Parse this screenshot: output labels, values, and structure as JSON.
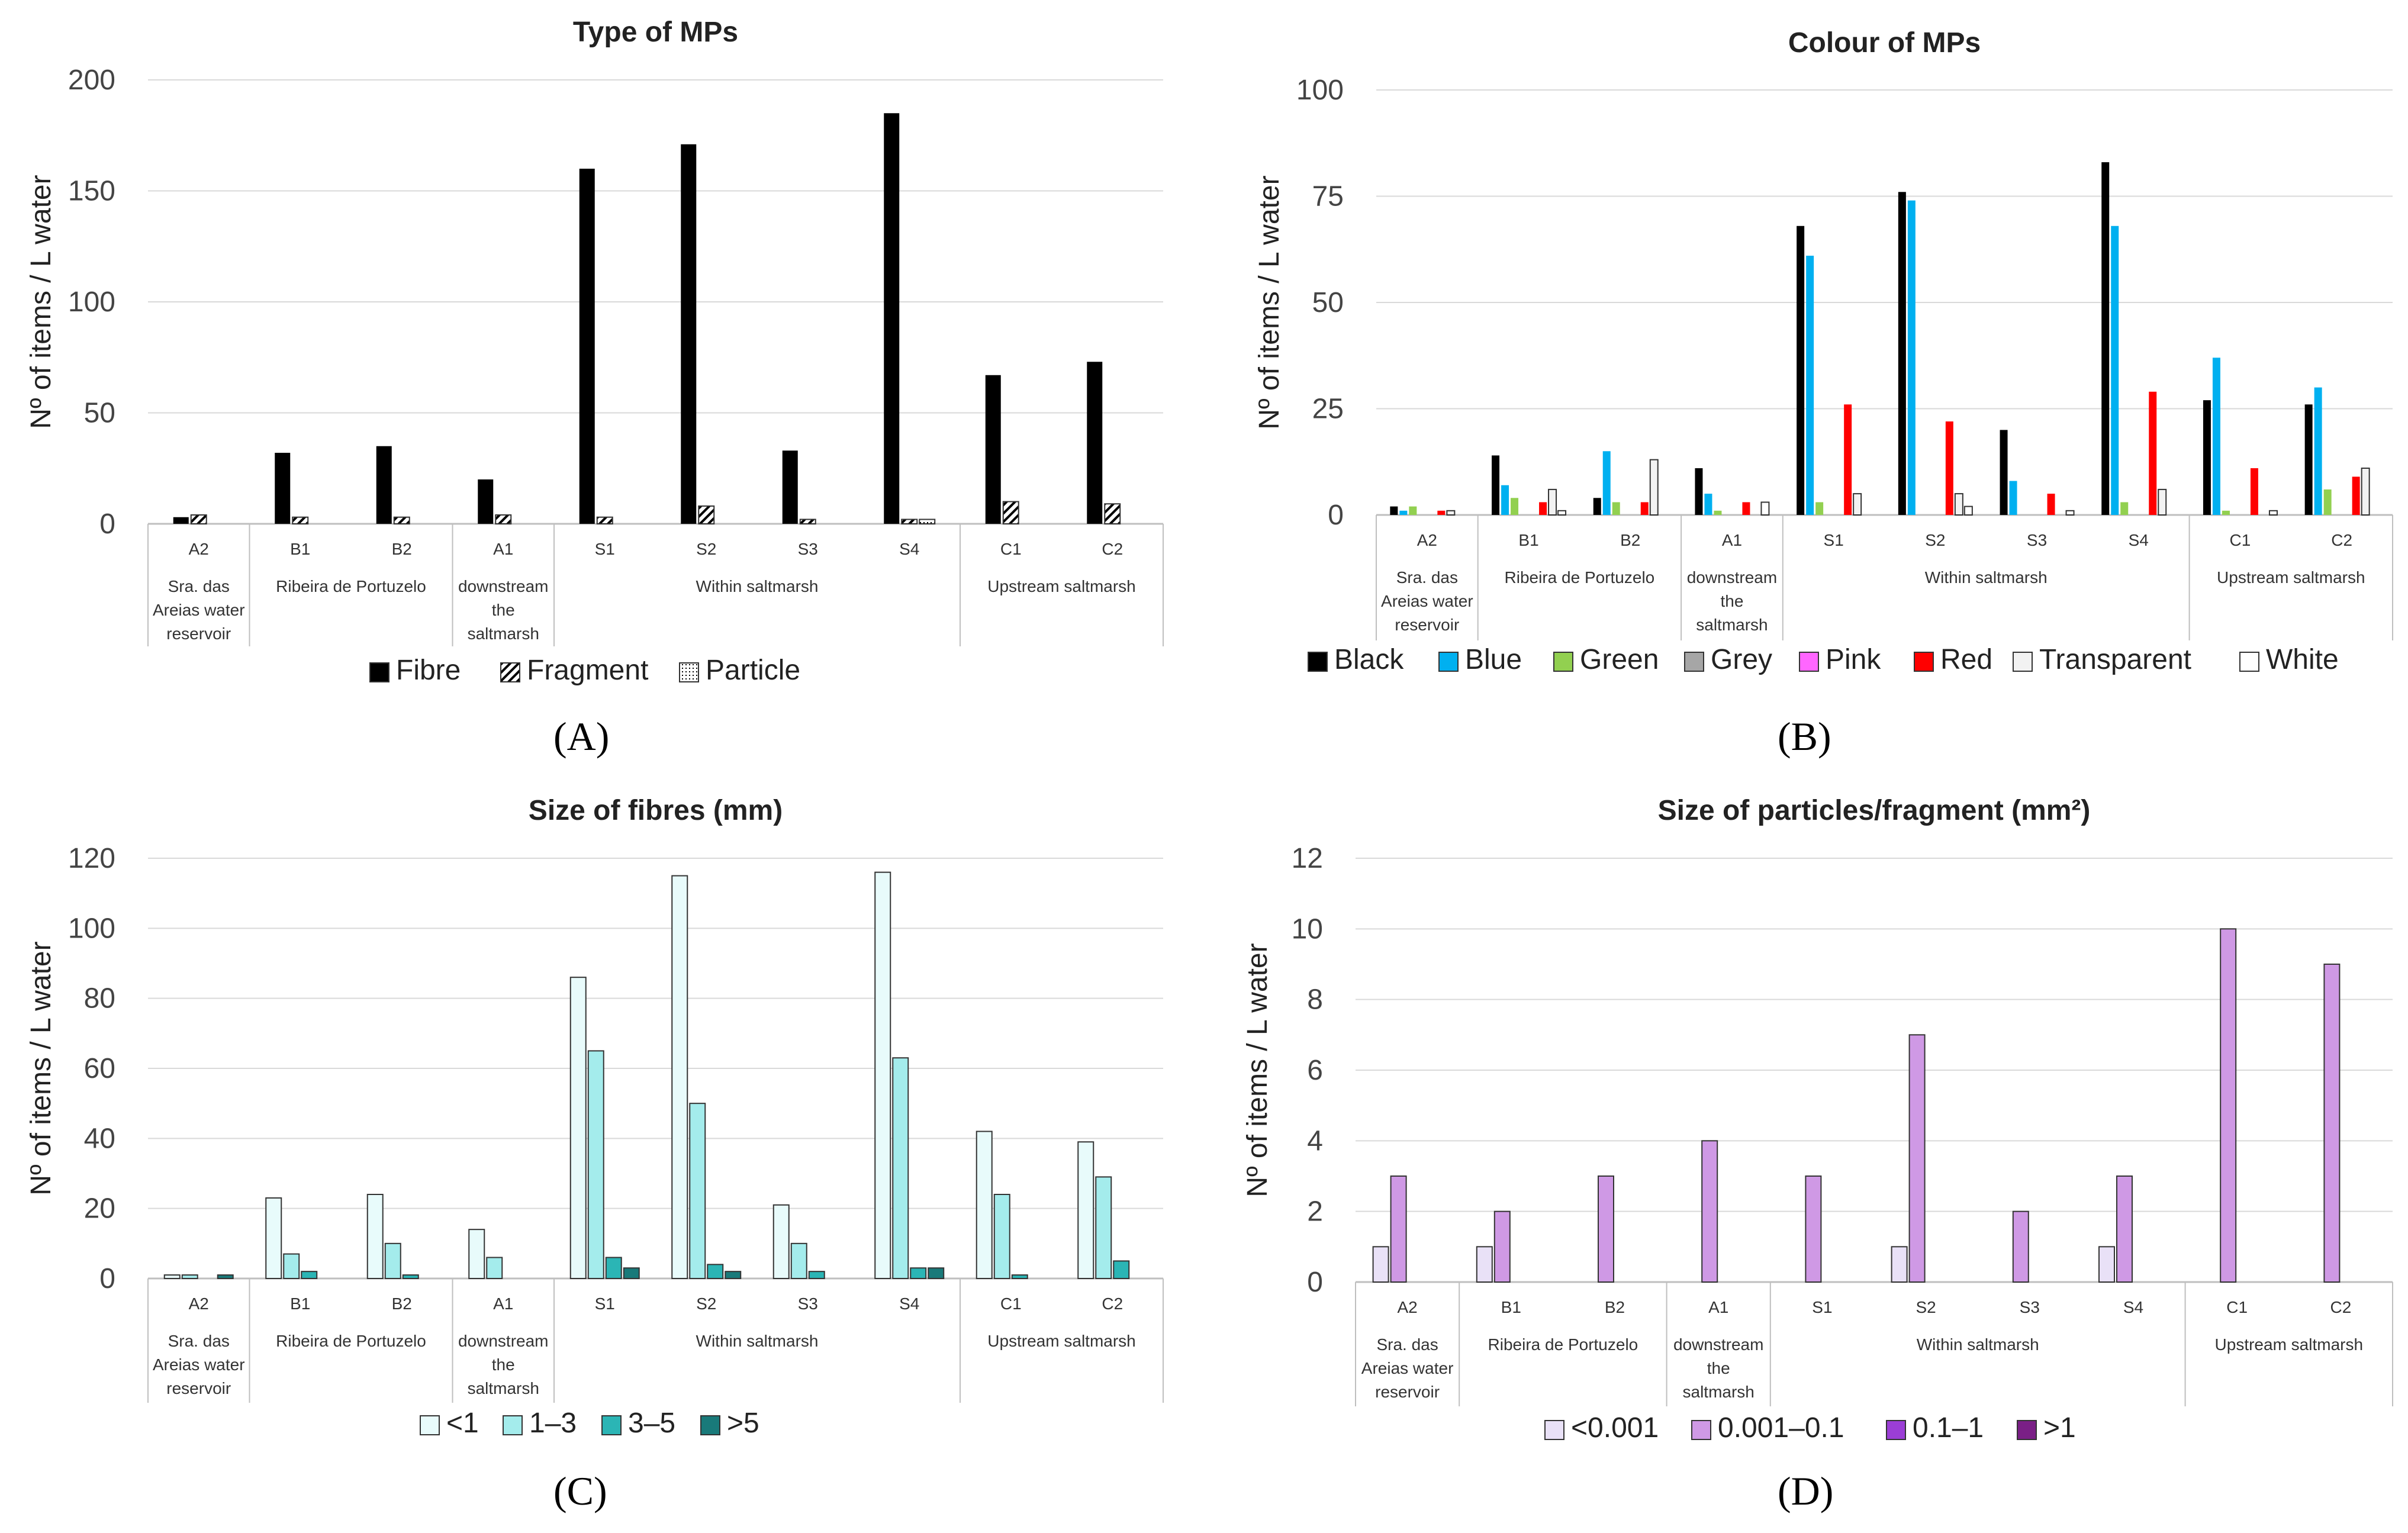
{
  "colors": {
    "fibre": "#000000",
    "fragment_hatch": "#000000",
    "particle_dot": "#000000",
    "black": "#000000",
    "blue": "#00b0f0",
    "green": "#92d050",
    "grey": "#a6a6a6",
    "pink": "#ff66ff",
    "red": "#ff0000",
    "transparent": "#f2f2f2",
    "white": "#ffffff",
    "lt1": "#e8fbfb",
    "s13": "#a4ecec",
    "s35": "#2bb5b5",
    "gt5": "#197a7a",
    "p_lt0001": "#e9e1f7",
    "p_0001_01": "#cf99e5",
    "p_01_1": "#9b3ed6",
    "p_gt1": "#7a1f86",
    "grid": "#d9d9d9",
    "axis": "#bfbfbf"
  },
  "chart_data": [
    {
      "id": "A",
      "type": "bar",
      "panel_label": "(A)",
      "title": "Type of MPs",
      "ylabel": "Nº of items / L water",
      "ylim": [
        0,
        200
      ],
      "yticks": [
        "0",
        "50",
        "100",
        "150",
        "200"
      ],
      "categories": [
        "A2",
        "B1",
        "B2",
        "A1",
        "S1",
        "S2",
        "S3",
        "S4",
        "C1",
        "C2"
      ],
      "groups": [
        {
          "label": "Sra. das Areias water reservoir",
          "lines": [
            "Sra. das",
            "Areias water",
            "reservoir"
          ],
          "span": 1
        },
        {
          "label": "Ribeira de Portuzelo",
          "lines": [
            "Ribeira de Portuzelo"
          ],
          "span": 2
        },
        {
          "label": "downstream the saltmarsh",
          "lines": [
            "downstream",
            "the",
            "saltmarsh"
          ],
          "span": 1
        },
        {
          "label": "Within saltmarsh",
          "lines": [
            "Within saltmarsh"
          ],
          "span": 4
        },
        {
          "label": "Upstream saltmarsh",
          "lines": [
            "Upstream saltmarsh"
          ],
          "span": 2
        }
      ],
      "series": [
        {
          "name": "Fibre",
          "key": "fibre",
          "values": [
            3,
            32,
            35,
            20,
            160,
            171,
            33,
            185,
            67,
            73
          ]
        },
        {
          "name": "Fragment",
          "key": "fragment",
          "values": [
            4,
            3,
            3,
            4,
            3,
            8,
            2,
            2,
            10,
            9
          ]
        },
        {
          "name": "Particle",
          "key": "particle",
          "values": [
            0,
            0,
            0,
            0,
            0,
            0,
            0,
            2,
            0,
            0
          ]
        }
      ]
    },
    {
      "id": "B",
      "type": "bar",
      "panel_label": "(B)",
      "title": "Colour of MPs",
      "ylabel": "Nº of items  / L water",
      "ylim": [
        0,
        100
      ],
      "yticks": [
        "0",
        "25",
        "50",
        "75",
        "100"
      ],
      "categories": [
        "A2",
        "B1",
        "B2",
        "A1",
        "S1",
        "S2",
        "S3",
        "S4",
        "C1",
        "C2"
      ],
      "groups": [
        {
          "label": "Sra. das Areias water reservoir",
          "lines": [
            "Sra. das",
            "Areias water",
            "reservoir"
          ],
          "span": 1
        },
        {
          "label": "Ribeira de Portuzelo",
          "lines": [
            "Ribeira de Portuzelo"
          ],
          "span": 2
        },
        {
          "label": "downstream the saltmarsh",
          "lines": [
            "downstream",
            "the",
            "saltmarsh"
          ],
          "span": 1
        },
        {
          "label": "Within saltmarsh",
          "lines": [
            "Within saltmarsh"
          ],
          "span": 4
        },
        {
          "label": "Upstream saltmarsh",
          "lines": [
            "Upstream saltmarsh"
          ],
          "span": 2
        }
      ],
      "series": [
        {
          "name": "Black",
          "key": "black",
          "values": [
            2,
            14,
            4,
            11,
            68,
            76,
            20,
            83,
            27,
            26
          ]
        },
        {
          "name": "Blue",
          "key": "blue",
          "values": [
            1,
            7,
            15,
            5,
            61,
            74,
            8,
            68,
            37,
            30
          ]
        },
        {
          "name": "Green",
          "key": "green",
          "values": [
            2,
            4,
            3,
            1,
            3,
            0,
            0,
            3,
            1,
            6
          ]
        },
        {
          "name": "Grey",
          "key": "grey",
          "values": [
            0,
            0,
            0,
            0,
            0,
            0,
            0,
            0,
            0,
            0
          ]
        },
        {
          "name": "Pink",
          "key": "pink",
          "values": [
            0,
            0,
            0,
            0,
            0,
            0,
            0,
            0,
            0,
            0
          ]
        },
        {
          "name": "Red",
          "key": "red",
          "values": [
            1,
            3,
            3,
            3,
            26,
            22,
            5,
            29,
            11,
            9
          ]
        },
        {
          "name": "Transparent",
          "key": "transparent",
          "values": [
            1,
            6,
            13,
            0,
            5,
            5,
            0,
            6,
            0,
            11
          ]
        },
        {
          "name": "White",
          "key": "white",
          "values": [
            0,
            1,
            0,
            3,
            0,
            2,
            1,
            0,
            1,
            0
          ]
        }
      ]
    },
    {
      "id": "C",
      "type": "bar",
      "panel_label": "(C)",
      "title": "Size of fibres (mm)",
      "ylabel": "Nº of items  / L water",
      "ylim": [
        0,
        120
      ],
      "yticks": [
        "0",
        "20",
        "40",
        "60",
        "80",
        "100",
        "120"
      ],
      "categories": [
        "A2",
        "B1",
        "B2",
        "A1",
        "S1",
        "S2",
        "S3",
        "S4",
        "C1",
        "C2"
      ],
      "groups": [
        {
          "label": "Sra. das Areias water reservoir",
          "lines": [
            "Sra. das",
            "Areias water",
            "reservoir"
          ],
          "span": 1
        },
        {
          "label": "Ribeira de Portuzelo",
          "lines": [
            "Ribeira de Portuzelo"
          ],
          "span": 2
        },
        {
          "label": "downstream the saltmarsh",
          "lines": [
            "downstream",
            "the",
            "saltmarsh"
          ],
          "span": 1
        },
        {
          "label": "Within saltmarsh",
          "lines": [
            "Within saltmarsh"
          ],
          "span": 4
        },
        {
          "label": "Upstream saltmarsh",
          "lines": [
            "Upstream saltmarsh"
          ],
          "span": 2
        }
      ],
      "series": [
        {
          "name": "<1",
          "key": "lt1",
          "values": [
            1,
            23,
            24,
            14,
            86,
            115,
            21,
            116,
            42,
            39
          ]
        },
        {
          "name": "1–3",
          "key": "s13",
          "values": [
            1,
            7,
            10,
            6,
            65,
            50,
            10,
            63,
            24,
            29
          ]
        },
        {
          "name": "3–5",
          "key": "s35",
          "values": [
            0,
            2,
            1,
            0,
            6,
            4,
            2,
            3,
            1,
            5
          ]
        },
        {
          "name": ">5",
          "key": "gt5",
          "values": [
            1,
            0,
            0,
            0,
            3,
            2,
            0,
            3,
            0,
            0
          ]
        }
      ]
    },
    {
      "id": "D",
      "type": "bar",
      "panel_label": "(D)",
      "title": "Size of particles/fragment (mm²)",
      "ylabel": "Nº of items  / L water",
      "ylim": [
        0,
        12
      ],
      "yticks": [
        "0",
        "2",
        "4",
        "6",
        "8",
        "10",
        "12"
      ],
      "categories": [
        "A2",
        "B1",
        "B2",
        "A1",
        "S1",
        "S2",
        "S3",
        "S4",
        "C1",
        "C2"
      ],
      "groups": [
        {
          "label": "Sra. das Areias water reservoir",
          "lines": [
            "Sra. das",
            "Areias water",
            "reservoir"
          ],
          "span": 1
        },
        {
          "label": "Ribeira de Portuzelo",
          "lines": [
            "Ribeira de Portuzelo"
          ],
          "span": 2
        },
        {
          "label": "downstream the saltmarsh",
          "lines": [
            "downstream",
            "the",
            "saltmarsh"
          ],
          "span": 1
        },
        {
          "label": "Within saltmarsh",
          "lines": [
            "Within saltmarsh"
          ],
          "span": 4
        },
        {
          "label": "Upstream saltmarsh",
          "lines": [
            "Upstream saltmarsh"
          ],
          "span": 2
        }
      ],
      "series": [
        {
          "name": "<0.001",
          "key": "p_lt0001",
          "values": [
            1,
            1,
            0,
            0,
            0,
            1,
            0,
            1,
            0,
            0
          ]
        },
        {
          "name": "0.001–0.1",
          "key": "p_0001_01",
          "values": [
            3,
            2,
            3,
            4,
            3,
            7,
            2,
            3,
            10,
            9
          ]
        },
        {
          "name": "0.1–1",
          "key": "p_01_1",
          "values": [
            0,
            0,
            0,
            0,
            0,
            0,
            0,
            0,
            0,
            0
          ]
        },
        {
          "name": ">1",
          "key": "p_gt1",
          "values": [
            0,
            0,
            0,
            0,
            0,
            0,
            0,
            0,
            0,
            0
          ]
        }
      ]
    }
  ]
}
